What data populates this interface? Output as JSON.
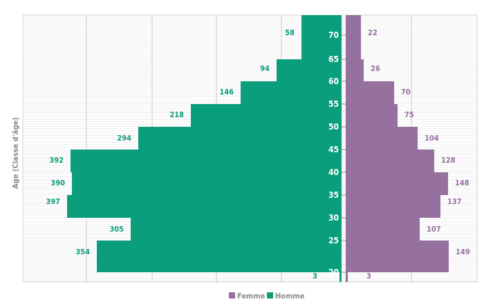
{
  "chart_data": {
    "type": "bar",
    "orientation": "population-pyramid",
    "ylabel": "Age   (Classe d'âge)",
    "age_ticks": [
      "20",
      "25",
      "30",
      "35",
      "40",
      "45",
      "50",
      "55",
      "60",
      "65",
      "70"
    ],
    "age_groups": [
      "<20",
      "20-24",
      "25-29",
      "30-34",
      "35-39",
      "40-44",
      "45-49",
      "50-54",
      "55-59",
      "60-64",
      "65-69",
      "70+"
    ],
    "series": [
      {
        "name": "Homme",
        "color": "#0a9e7c",
        "side": "left",
        "values": [
          3,
          354,
          305,
          397,
          390,
          392,
          294,
          218,
          146,
          94,
          58,
          58
        ]
      },
      {
        "name": "Femme",
        "color": "#96709e",
        "side": "right",
        "values": [
          3,
          149,
          107,
          137,
          148,
          128,
          104,
          75,
          70,
          26,
          22,
          22
        ]
      }
    ],
    "data_labels": {
      "Homme": [
        "3",
        "354",
        "305",
        "397",
        "390",
        "392",
        "294",
        "218",
        "146",
        "94",
        "58"
      ],
      "Femme": [
        "3",
        "149",
        "107",
        "137",
        "148",
        "128",
        "104",
        "75",
        "70",
        "26",
        "22"
      ]
    },
    "label_colors": {
      "Homme": "#0a9e7c",
      "Femme": "#96709e"
    },
    "legend": [
      "Femme",
      "Homme"
    ],
    "legend_placement": "bottom-center",
    "grid": true
  }
}
